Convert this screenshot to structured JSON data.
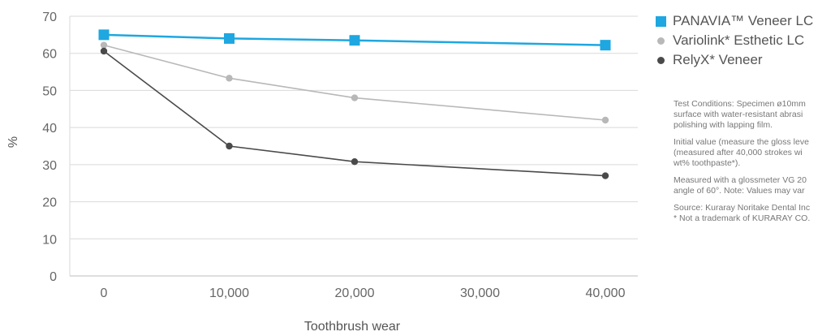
{
  "chart_data": {
    "type": "line",
    "x": [
      0,
      10000,
      20000,
      40000
    ],
    "x_tick_labels": [
      "0",
      "10,000",
      "20,000",
      "30,000",
      "40,000"
    ],
    "x_ticks": [
      0,
      10000,
      20000,
      30000,
      40000
    ],
    "xlim": [
      0,
      40000
    ],
    "ylim": [
      0,
      70
    ],
    "y_ticks": [
      0,
      10,
      20,
      30,
      40,
      50,
      60,
      70
    ],
    "xlabel": "Toothbrush wear",
    "ylabel": "%",
    "grid": "horizontal",
    "legend_position": "right",
    "series": [
      {
        "name": "PANAVIA™ Veneer LC",
        "values": [
          65,
          64,
          63.5,
          62.2
        ],
        "color": "#1ea7e0",
        "marker": "square"
      },
      {
        "name": "Variolink* Esthetic LC",
        "values": [
          62.2,
          53.3,
          48,
          42
        ],
        "color": "#b8b8b8",
        "marker": "circle"
      },
      {
        "name": "RelyX* Veneer",
        "values": [
          60.6,
          35,
          30.8,
          27
        ],
        "color": "#4a4a4a",
        "marker": "circle"
      }
    ]
  },
  "notes": [
    "Test Conditions: Specimen ø10mm\nsurface with water-resistant abrasi\npolishing with lapping film.",
    "Initial value (measure the gloss leve\n(measured after 40,000 strokes wi\nwt% toothpaste*).",
    "Measured with a glossmeter VG 20\nangle of 60°. Note: Values may var",
    "Source: Kuraray Noritake Dental Inc\n* Not a trademark of KURARAY CO."
  ]
}
